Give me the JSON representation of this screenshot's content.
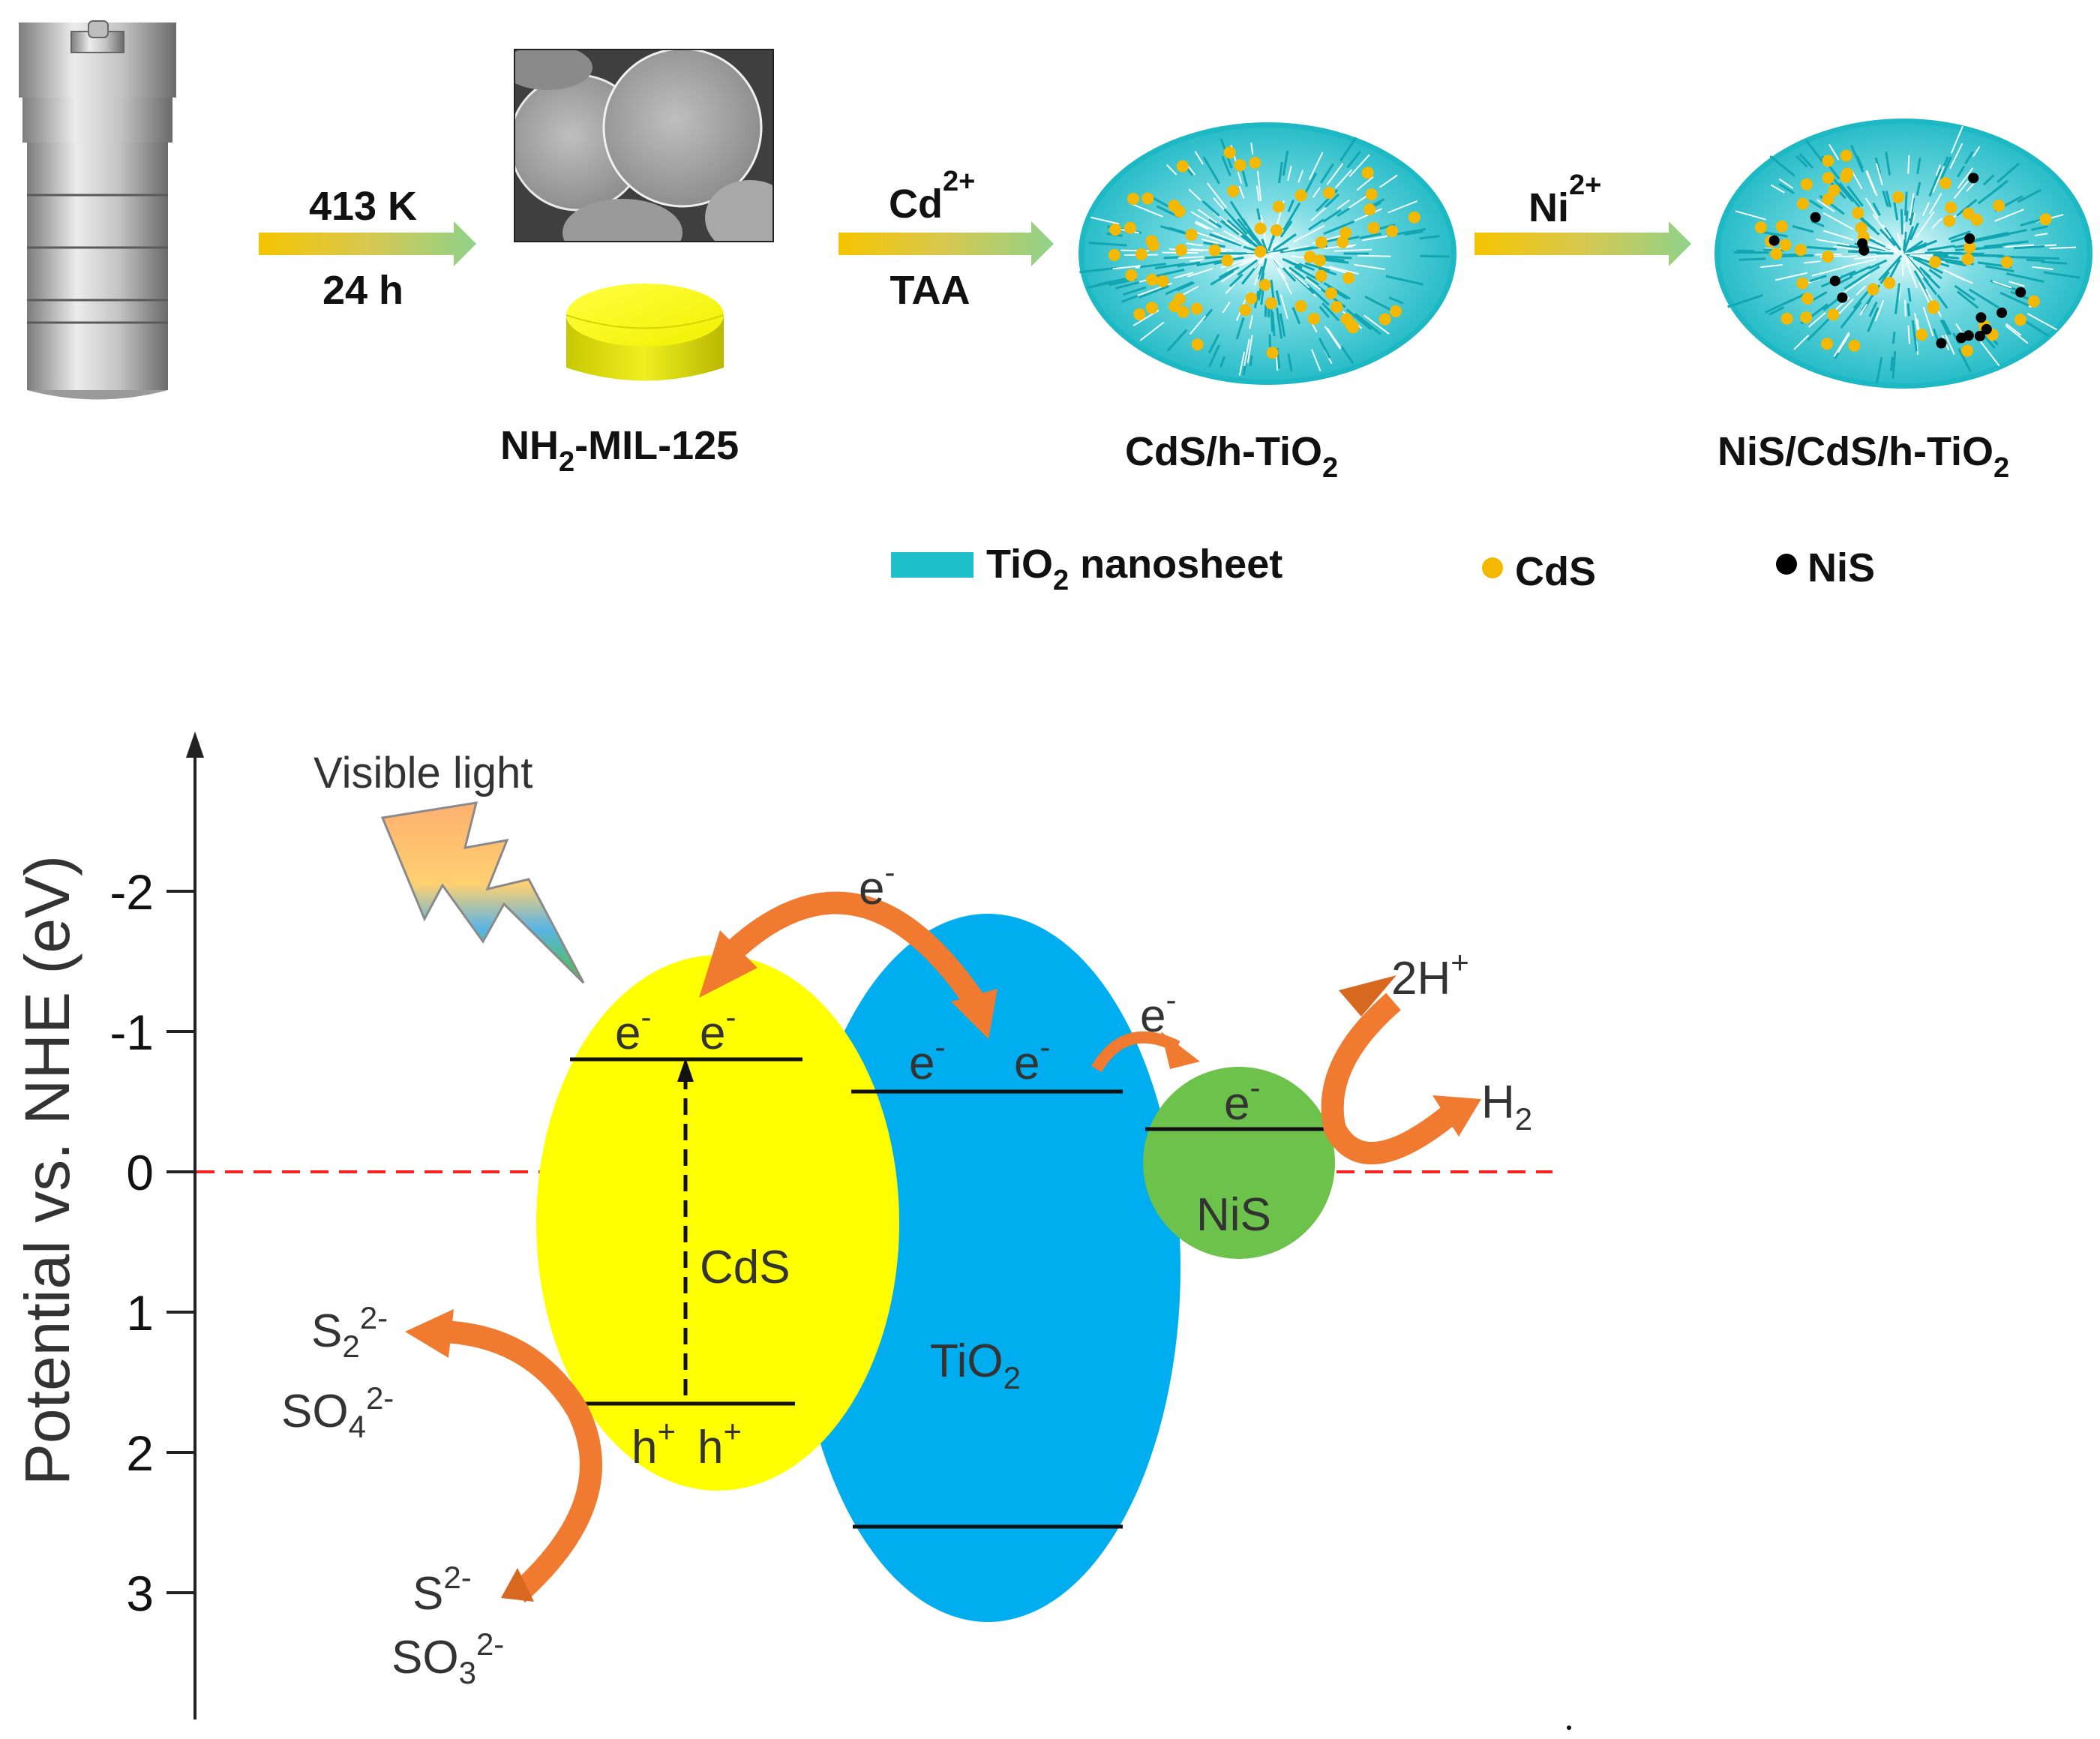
{
  "synthesis": {
    "step1": {
      "above": "413 K",
      "below": "24 h"
    },
    "step2": {
      "above_base": "Cd",
      "above_sup": "2+",
      "below": "TAA"
    },
    "step3": {
      "above_base": "Ni",
      "above_sup": "2+"
    },
    "products": {
      "mof": {
        "base": "NH",
        "sub": "2",
        "rest": "-MIL-125"
      },
      "cds_tio2": {
        "base": "CdS/h-TiO",
        "sub": "2"
      },
      "nis_cds_tio2": {
        "base": "NiS/CdS/h-TiO",
        "sub": "2"
      }
    }
  },
  "legend": {
    "nanosheet": {
      "base": "TiO",
      "sub": "2",
      "rest": " nanosheet",
      "color": "#1ec0cc"
    },
    "cds": {
      "label": "CdS",
      "color": "#f5b800"
    },
    "nis": {
      "label": "NiS",
      "color": "#000000"
    }
  },
  "band_diagram": {
    "y_axis_label": "Potential vs. NHE (eV)",
    "y_ticks": [
      "-2",
      "-1",
      "0",
      "1",
      "2",
      "3"
    ],
    "light_label": "Visible light",
    "cds": {
      "label": "CdS",
      "color": "#ffff00",
      "cb_electrons": [
        "e",
        "e"
      ],
      "vb_holes": [
        "h",
        "h"
      ]
    },
    "tio2": {
      "label_base": "TiO",
      "label_sub": "2",
      "color": "#00aeef",
      "cb_electrons": [
        "e",
        "e"
      ]
    },
    "nis": {
      "label": "NiS",
      "color": "#6cc24a",
      "electron": "e"
    },
    "transfer_electrons": [
      "e",
      "e"
    ],
    "charge_minus": "-",
    "charge_plus": "+",
    "reduction": {
      "reactant": "2H",
      "reactant_sup": "+",
      "product": "H",
      "product_sub": "2"
    },
    "oxidation": {
      "products": [
        {
          "base": "S",
          "sub": "2",
          "sup": "2-"
        },
        {
          "base": "SO",
          "sub": "4",
          "sup": "2-"
        }
      ],
      "reactants": [
        {
          "base": "S",
          "sup": "2-"
        },
        {
          "base": "SO",
          "sub": "3",
          "sup": "2-"
        }
      ]
    }
  }
}
